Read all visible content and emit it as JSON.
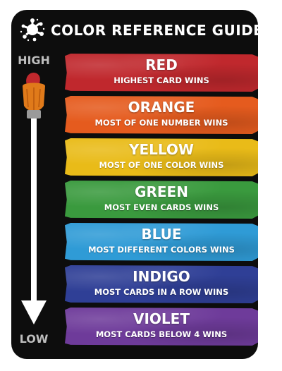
{
  "header": {
    "title": "COLOR REFERENCE GUIDE",
    "icon": "paint-splat-icon"
  },
  "scale": {
    "high_label": "HIGH",
    "low_label": "LOW",
    "icon": "paintbrush-arrow-icon"
  },
  "colors": [
    {
      "name": "RED",
      "rule": "HIGHEST CARD WINS",
      "color": "#c0282d"
    },
    {
      "name": "ORANGE",
      "rule": "MOST OF ONE NUMBER WINS",
      "color": "#e55b1e"
    },
    {
      "name": "YELLOW",
      "rule": "MOST OF ONE COLOR WINS",
      "color": "#e9bb18"
    },
    {
      "name": "GREEN",
      "rule": "MOST EVEN CARDS WINS",
      "color": "#3a9a3e"
    },
    {
      "name": "BLUE",
      "rule": "MOST DIFFERENT COLORS WINS",
      "color": "#2f9bd6"
    },
    {
      "name": "INDIGO",
      "rule": "MOST CARDS IN A ROW WINS",
      "color": "#2f3f96"
    },
    {
      "name": "VIOLET",
      "rule": "MOST CARDS BELOW 4 WINS",
      "color": "#6e3b9a"
    }
  ],
  "palette": {
    "card_background": "#0d0d0d",
    "scale_label": "#bdbdbd",
    "brush_handle": "#ffffff",
    "brush_ferrule": "#9a9a9a",
    "brush_bristles": "#e07a1a",
    "brush_tip": "#c0282d"
  }
}
